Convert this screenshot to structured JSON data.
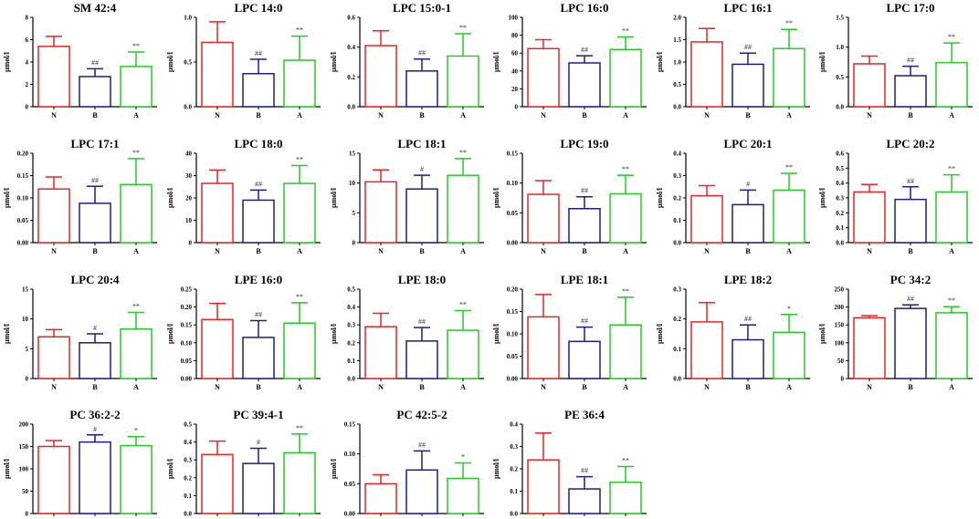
{
  "colors": {
    "N": "#ee2222",
    "B": "#1c1c8c",
    "A": "#22cc22",
    "axis": "#000000"
  },
  "chart_data": [
    {
      "type": "bar",
      "title": "SM 42:4",
      "ylabel": "μmol/l",
      "categories": [
        "N",
        "B",
        "A"
      ],
      "values": [
        5.4,
        2.7,
        3.6
      ],
      "errors": [
        0.9,
        0.7,
        1.3
      ],
      "ylim": [
        0,
        8
      ],
      "yticks": [
        "0",
        "2",
        "4",
        "6",
        "8"
      ],
      "significance": [
        "",
        "##",
        "**"
      ]
    },
    {
      "type": "bar",
      "title": "LPC 14:0",
      "ylabel": "μmol/l",
      "categories": [
        "N",
        "B",
        "A"
      ],
      "values": [
        0.72,
        0.37,
        0.52
      ],
      "errors": [
        0.23,
        0.16,
        0.27
      ],
      "ylim": [
        0,
        1.0
      ],
      "yticks": [
        "0.0",
        "0.5",
        "1.0"
      ],
      "significance": [
        "",
        "##",
        "**"
      ]
    },
    {
      "type": "bar",
      "title": "LPC 15:0-1",
      "ylabel": "μmol/l",
      "categories": [
        "N",
        "B",
        "A"
      ],
      "values": [
        0.41,
        0.24,
        0.34
      ],
      "errors": [
        0.1,
        0.08,
        0.15
      ],
      "ylim": [
        0,
        0.6
      ],
      "yticks": [
        "0.0",
        "0.2",
        "0.4",
        "0.6"
      ],
      "significance": [
        "",
        "##",
        "**"
      ]
    },
    {
      "type": "bar",
      "title": "LPC 16:0",
      "ylabel": "μmol/l",
      "categories": [
        "N",
        "B",
        "A"
      ],
      "values": [
        65,
        49,
        64
      ],
      "errors": [
        10,
        8,
        14
      ],
      "ylim": [
        0,
        100
      ],
      "yticks": [
        "0",
        "20",
        "40",
        "60",
        "80",
        "100"
      ],
      "significance": [
        "",
        "##",
        "**"
      ]
    },
    {
      "type": "bar",
      "title": "LPC 16:1",
      "ylabel": "μmol/l",
      "categories": [
        "N",
        "B",
        "A"
      ],
      "values": [
        1.45,
        0.95,
        1.3
      ],
      "errors": [
        0.3,
        0.25,
        0.43
      ],
      "ylim": [
        0,
        2.0
      ],
      "yticks": [
        "0.0",
        "0.5",
        "1.0",
        "1.5",
        "2.0"
      ],
      "significance": [
        "",
        "##",
        "**"
      ]
    },
    {
      "type": "bar",
      "title": "LPC 17:0",
      "ylabel": "μmol/l",
      "categories": [
        "N",
        "B",
        "A"
      ],
      "values": [
        0.72,
        0.52,
        0.74
      ],
      "errors": [
        0.13,
        0.16,
        0.33
      ],
      "ylim": [
        0,
        1.5
      ],
      "yticks": [
        "0.0",
        "0.5",
        "1.0",
        "1.5"
      ],
      "significance": [
        "",
        "##",
        "**"
      ]
    },
    {
      "type": "bar",
      "title": "LPC 17:1",
      "ylabel": "μmol/l",
      "categories": [
        "N",
        "B",
        "A"
      ],
      "values": [
        0.12,
        0.088,
        0.13
      ],
      "errors": [
        0.027,
        0.038,
        0.058
      ],
      "ylim": [
        0,
        0.2
      ],
      "yticks": [
        "0.00",
        "0.05",
        "0.10",
        "0.15",
        "0.20"
      ],
      "significance": [
        "",
        "##",
        "**"
      ]
    },
    {
      "type": "bar",
      "title": "LPC 18:0",
      "ylabel": "μmol/l",
      "categories": [
        "N",
        "B",
        "A"
      ],
      "values": [
        26.5,
        19,
        26.5
      ],
      "errors": [
        6,
        4.5,
        8
      ],
      "ylim": [
        0,
        40
      ],
      "yticks": [
        "0",
        "10",
        "20",
        "30",
        "40"
      ],
      "significance": [
        "",
        "##",
        "**"
      ]
    },
    {
      "type": "bar",
      "title": "LPC 18:1",
      "ylabel": "μmol/l",
      "categories": [
        "N",
        "B",
        "A"
      ],
      "values": [
        10.2,
        9,
        11.3
      ],
      "errors": [
        2,
        2.3,
        2.8
      ],
      "ylim": [
        0,
        15
      ],
      "yticks": [
        "0",
        "5",
        "10",
        "15"
      ],
      "significance": [
        "",
        "#",
        "**"
      ]
    },
    {
      "type": "bar",
      "title": "LPC 19:0",
      "ylabel": "μmol/l",
      "categories": [
        "N",
        "B",
        "A"
      ],
      "values": [
        0.081,
        0.057,
        0.082
      ],
      "errors": [
        0.023,
        0.02,
        0.031
      ],
      "ylim": [
        0,
        0.15
      ],
      "yticks": [
        "0.00",
        "0.05",
        "0.10",
        "0.15"
      ],
      "significance": [
        "",
        "##",
        "**"
      ]
    },
    {
      "type": "bar",
      "title": "LPC 20:1",
      "ylabel": "μmol/l",
      "categories": [
        "N",
        "B",
        "A"
      ],
      "values": [
        0.21,
        0.17,
        0.235
      ],
      "errors": [
        0.045,
        0.065,
        0.075
      ],
      "ylim": [
        0,
        0.4
      ],
      "yticks": [
        "0.0",
        "0.1",
        "0.2",
        "0.3",
        "0.4"
      ],
      "significance": [
        "",
        "#",
        "**"
      ]
    },
    {
      "type": "bar",
      "title": "LPC 20:2",
      "ylabel": "μmol/l",
      "categories": [
        "N",
        "B",
        "A"
      ],
      "values": [
        0.34,
        0.29,
        0.34
      ],
      "errors": [
        0.05,
        0.085,
        0.115
      ],
      "ylim": [
        0,
        0.6
      ],
      "yticks": [
        "0.0",
        "0.1",
        "0.2",
        "0.3",
        "0.4",
        "0.5",
        "0.6"
      ],
      "significance": [
        "",
        "##",
        "**"
      ]
    },
    {
      "type": "bar",
      "title": "LPC 20:4",
      "ylabel": "μmol/l",
      "categories": [
        "N",
        "B",
        "A"
      ],
      "values": [
        7,
        6,
        8.3
      ],
      "errors": [
        1.2,
        1.5,
        2.8
      ],
      "ylim": [
        0,
        15
      ],
      "yticks": [
        "0",
        "5",
        "10",
        "15"
      ],
      "significance": [
        "",
        "#",
        "**"
      ]
    },
    {
      "type": "bar",
      "title": "LPE 16:0",
      "ylabel": "μmol/l",
      "categories": [
        "N",
        "B",
        "A"
      ],
      "values": [
        0.165,
        0.115,
        0.155
      ],
      "errors": [
        0.045,
        0.047,
        0.057
      ],
      "ylim": [
        0,
        0.25
      ],
      "yticks": [
        "0.00",
        "0.05",
        "0.10",
        "0.15",
        "0.20",
        "0.25"
      ],
      "significance": [
        "",
        "##",
        "**"
      ]
    },
    {
      "type": "bar",
      "title": "LPE 18:0",
      "ylabel": "μmol/l",
      "categories": [
        "N",
        "B",
        "A"
      ],
      "values": [
        0.29,
        0.21,
        0.27
      ],
      "errors": [
        0.075,
        0.075,
        0.11
      ],
      "ylim": [
        0,
        0.5
      ],
      "yticks": [
        "0.0",
        "0.1",
        "0.2",
        "0.3",
        "0.4",
        "0.5"
      ],
      "significance": [
        "",
        "##",
        "**"
      ]
    },
    {
      "type": "bar",
      "title": "LPE 18:1",
      "ylabel": "μmol/l",
      "categories": [
        "N",
        "B",
        "A"
      ],
      "values": [
        0.138,
        0.083,
        0.12
      ],
      "errors": [
        0.05,
        0.032,
        0.062
      ],
      "ylim": [
        0,
        0.2
      ],
      "yticks": [
        "0.00",
        "0.05",
        "0.10",
        "0.15",
        "0.20"
      ],
      "significance": [
        "",
        "##",
        "**"
      ]
    },
    {
      "type": "bar",
      "title": "LPE 18:2",
      "ylabel": "μmol/l",
      "categories": [
        "N",
        "B",
        "A"
      ],
      "values": [
        0.19,
        0.13,
        0.155
      ],
      "errors": [
        0.065,
        0.05,
        0.06
      ],
      "ylim": [
        0,
        0.3
      ],
      "yticks": [
        "0.0",
        "0.1",
        "0.2",
        "0.3"
      ],
      "significance": [
        "",
        "##",
        "*"
      ]
    },
    {
      "type": "bar",
      "title": "PC 34:2",
      "ylabel": "μmol/l",
      "categories": [
        "N",
        "B",
        "A"
      ],
      "values": [
        170,
        196,
        184
      ],
      "errors": [
        6,
        10,
        17
      ],
      "ylim": [
        0,
        250
      ],
      "yticks": [
        "0",
        "50",
        "100",
        "150",
        "200",
        "250"
      ],
      "significance": [
        "",
        "##",
        "**"
      ]
    },
    {
      "type": "bar",
      "title": "PC 36:2-2",
      "ylabel": "μmol/l",
      "categories": [
        "N",
        "B",
        "A"
      ],
      "values": [
        150,
        160,
        152
      ],
      "errors": [
        13,
        16,
        20
      ],
      "ylim": [
        0,
        200
      ],
      "yticks": [
        "0",
        "50",
        "100",
        "150",
        "200"
      ],
      "significance": [
        "",
        "#",
        "*"
      ]
    },
    {
      "type": "bar",
      "title": "PC 39:4-1",
      "ylabel": "μmol/l",
      "categories": [
        "N",
        "B",
        "A"
      ],
      "values": [
        0.33,
        0.28,
        0.34
      ],
      "errors": [
        0.075,
        0.085,
        0.105
      ],
      "ylim": [
        0,
        0.5
      ],
      "yticks": [
        "0.0",
        "0.1",
        "0.2",
        "0.3",
        "0.4",
        "0.5"
      ],
      "significance": [
        "",
        "#",
        "**"
      ]
    },
    {
      "type": "bar",
      "title": "PC 42:5-2",
      "ylabel": "μmol/l",
      "categories": [
        "N",
        "B",
        "A"
      ],
      "values": [
        0.05,
        0.073,
        0.059
      ],
      "errors": [
        0.015,
        0.032,
        0.026
      ],
      "ylim": [
        0,
        0.15
      ],
      "yticks": [
        "0.00",
        "0.05",
        "0.10",
        "0.15"
      ],
      "significance": [
        "",
        "##",
        "*"
      ]
    },
    {
      "type": "bar",
      "title": "PE 36:4",
      "ylabel": "μmol/l",
      "categories": [
        "N",
        "B",
        "A"
      ],
      "values": [
        0.24,
        0.11,
        0.14
      ],
      "errors": [
        0.12,
        0.055,
        0.07
      ],
      "ylim": [
        0,
        0.4
      ],
      "yticks": [
        "0.0",
        "0.1",
        "0.2",
        "0.3",
        "0.4"
      ],
      "significance": [
        "",
        "##",
        "**"
      ]
    }
  ]
}
